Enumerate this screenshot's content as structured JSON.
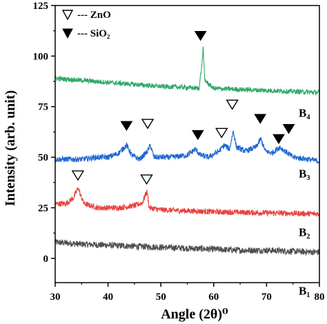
{
  "chart_data": {
    "type": "line",
    "xlabel": "Angle (2θ)⁰",
    "ylabel": "Intensity (arb. unit)",
    "xlim": [
      30,
      80
    ],
    "ylim": [
      -12,
      125
    ],
    "x_ticks": [
      30,
      40,
      50,
      60,
      70,
      80
    ],
    "y_ticks": [
      0,
      25,
      50,
      75,
      100,
      125
    ],
    "grid": false,
    "legend_position": "top-left",
    "legend": [
      {
        "marker": "open-triangle-down",
        "label": "--- ZnO"
      },
      {
        "marker": "filled-triangle-down",
        "label": "--- SiO₂"
      }
    ],
    "series": [
      {
        "name": "B₁",
        "color": "#4d4d4d",
        "points": [
          [
            30,
            8
          ],
          [
            35,
            7
          ],
          [
            40,
            6.5
          ],
          [
            45,
            6
          ],
          [
            50,
            5.5
          ],
          [
            55,
            5
          ],
          [
            60,
            4.5
          ],
          [
            65,
            4
          ],
          [
            70,
            4
          ],
          [
            75,
            3.5
          ],
          [
            80,
            3
          ]
        ],
        "noise": 1.6
      },
      {
        "name": "B₂",
        "color": "#e8403a",
        "points": [
          [
            30,
            27
          ],
          [
            32,
            27
          ],
          [
            33.5,
            30
          ],
          [
            34,
            33
          ],
          [
            34.4,
            35
          ],
          [
            34.8,
            31
          ],
          [
            35.5,
            27
          ],
          [
            38,
            25
          ],
          [
            42,
            25
          ],
          [
            45,
            26
          ],
          [
            46.5,
            27.5
          ],
          [
            47,
            31
          ],
          [
            47.4,
            33
          ],
          [
            47.8,
            25
          ],
          [
            50,
            24
          ],
          [
            60,
            23
          ],
          [
            70,
            22.5
          ],
          [
            80,
            22
          ]
        ],
        "noise": 1.4
      },
      {
        "name": "B₃",
        "color": "#1f66d1",
        "points": [
          [
            30,
            49
          ],
          [
            35,
            49
          ],
          [
            38,
            50
          ],
          [
            40,
            50
          ],
          [
            42,
            52
          ],
          [
            43.5,
            56
          ],
          [
            44.5,
            51
          ],
          [
            46,
            49
          ],
          [
            47.5,
            53
          ],
          [
            48,
            56
          ],
          [
            48.7,
            50
          ],
          [
            50,
            50
          ],
          [
            52,
            50
          ],
          [
            55,
            51
          ],
          [
            56.5,
            54
          ],
          [
            57.5,
            51
          ],
          [
            59,
            50
          ],
          [
            61,
            53
          ],
          [
            62,
            56
          ],
          [
            63,
            54
          ],
          [
            63.7,
            63
          ],
          [
            64.3,
            55
          ],
          [
            66,
            53
          ],
          [
            68,
            55
          ],
          [
            68.9,
            59
          ],
          [
            69.8,
            53
          ],
          [
            71,
            52
          ],
          [
            72.5,
            55
          ],
          [
            73.5,
            53
          ],
          [
            75,
            50
          ],
          [
            78,
            49
          ],
          [
            80,
            48
          ]
        ],
        "noise": 1.4
      },
      {
        "name": "B₄",
        "color": "#2ea866",
        "points": [
          [
            30,
            89
          ],
          [
            35,
            88
          ],
          [
            40,
            87
          ],
          [
            45,
            86
          ],
          [
            50,
            85
          ],
          [
            55,
            84.5
          ],
          [
            57.2,
            84
          ],
          [
            57.7,
            94
          ],
          [
            58,
            104
          ],
          [
            58.3,
            88
          ],
          [
            60,
            84
          ],
          [
            65,
            83.5
          ],
          [
            70,
            83
          ],
          [
            75,
            82.5
          ],
          [
            80,
            82
          ]
        ],
        "noise": 1.2
      }
    ],
    "markers": [
      {
        "type": "SiO2",
        "x": 57.5,
        "y": 110
      },
      {
        "type": "ZnO",
        "x": 47.5,
        "y": 66.5
      },
      {
        "type": "SiO2",
        "x": 43.5,
        "y": 65.5
      },
      {
        "type": "SiO2",
        "x": 57,
        "y": 61
      },
      {
        "type": "ZnO",
        "x": 61.5,
        "y": 62
      },
      {
        "type": "ZnO",
        "x": 63.5,
        "y": 76
      },
      {
        "type": "SiO2",
        "x": 68.8,
        "y": 69
      },
      {
        "type": "SiO2",
        "x": 72.3,
        "y": 59
      },
      {
        "type": "SiO2",
        "x": 74.2,
        "y": 64
      },
      {
        "type": "ZnO",
        "x": 34.3,
        "y": 41
      },
      {
        "type": "ZnO",
        "x": 47.3,
        "y": 39
      }
    ],
    "series_labels": [
      {
        "text": "B₄",
        "y": 72
      },
      {
        "text": "B₃",
        "y": 42
      },
      {
        "text": "B₂",
        "y": 13
      },
      {
        "text": "B₁",
        "y": -16
      }
    ]
  }
}
